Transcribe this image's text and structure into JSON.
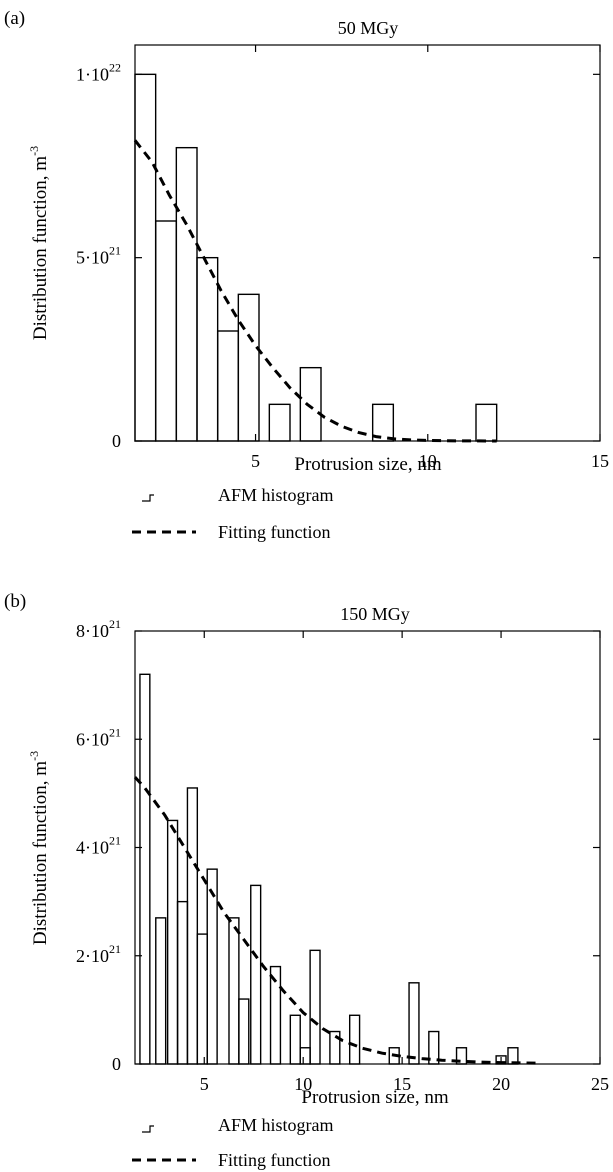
{
  "chart_data": [
    {
      "panel_label": "(a)",
      "type": "bar",
      "title": "50 MGy",
      "xlabel": "Protrusion size, nm",
      "ylabel": "Distribution function, m",
      "ylabel_sup": "-3",
      "xlim": [
        1.5,
        15
      ],
      "ylim": [
        0,
        1.08e+22
      ],
      "xticks": [
        5,
        10,
        15
      ],
      "xtick_labels": [
        "5",
        "10",
        "15"
      ],
      "yticks": [
        0,
        5e+21,
        1e+22
      ],
      "ytick_labels": [
        {
          "base": "0",
          "sup": ""
        },
        {
          "base": "5·10",
          "sup": "21"
        },
        {
          "base": "1·10",
          "sup": "22"
        }
      ],
      "bar_width": 0.6,
      "bars": [
        {
          "x": 1.8,
          "value": 1e+22
        },
        {
          "x": 2.4,
          "value": 6e+21
        },
        {
          "x": 3.0,
          "value": 8e+21
        },
        {
          "x": 3.6,
          "value": 5e+21
        },
        {
          "x": 4.2,
          "value": 3e+21
        },
        {
          "x": 4.8,
          "value": 4e+21
        },
        {
          "x": 5.7,
          "value": 1e+21
        },
        {
          "x": 6.6,
          "value": 2e+21
        },
        {
          "x": 8.7,
          "value": 1e+21
        },
        {
          "x": 11.7,
          "value": 1e+21
        }
      ],
      "series": [
        {
          "name": "AFM histogram",
          "style": "solid-steps"
        },
        {
          "name": "Fitting function",
          "style": "dashed",
          "x": [
            1.5,
            2,
            2.5,
            3,
            3.5,
            4,
            4.5,
            5,
            5.5,
            6,
            6.5,
            7,
            7.5,
            8,
            8.5,
            9,
            9.5,
            10,
            10.5,
            11,
            11.5,
            12
          ],
          "values": [
            8.2e+21,
            7.6e+21,
            6.7e+21,
            5.9e+21,
            5e+21,
            4.1e+21,
            3.3e+21,
            2.6e+21,
            2e+21,
            1.45e+21,
            1e+21,
            6.5e+20,
            4e+20,
            2.3e+20,
            1.2e+20,
            6e+19,
            3e+19,
            1.5e+19,
            8e+18,
            4e+18,
            2e+18,
            1e+18
          ]
        }
      ],
      "legend": {
        "placement": "below",
        "entries": [
          "AFM histogram",
          "Fitting function"
        ]
      }
    },
    {
      "panel_label": "(b)",
      "type": "bar",
      "title": "150 MGy",
      "xlabel": "Protrusion size, nm",
      "ylabel": "Distribution function, m",
      "ylabel_sup": "-3",
      "xlim": [
        1.5,
        25
      ],
      "ylim": [
        0,
        8e+21
      ],
      "xticks": [
        5,
        10,
        15,
        20,
        25
      ],
      "xtick_labels": [
        "5",
        "10",
        "15",
        "20",
        "25"
      ],
      "yticks": [
        0,
        2e+21,
        4e+21,
        6e+21,
        8e+21
      ],
      "ytick_labels": [
        {
          "base": "0",
          "sup": ""
        },
        {
          "base": "2·10",
          "sup": "21"
        },
        {
          "base": "4·10",
          "sup": "21"
        },
        {
          "base": "6·10",
          "sup": "21"
        },
        {
          "base": "8·10",
          "sup": "21"
        }
      ],
      "bar_width": 0.5,
      "bars": [
        {
          "x": 2.0,
          "value": 7.2e+21
        },
        {
          "x": 2.8,
          "value": 2.7e+21
        },
        {
          "x": 3.4,
          "value": 4.5e+21
        },
        {
          "x": 3.9,
          "value": 3e+21
        },
        {
          "x": 4.4,
          "value": 5.1e+21
        },
        {
          "x": 4.9,
          "value": 2.4e+21
        },
        {
          "x": 5.4,
          "value": 3.6e+21
        },
        {
          "x": 6.0,
          "value": 0.0
        },
        {
          "x": 6.5,
          "value": 2.7e+21
        },
        {
          "x": 7.0,
          "value": 1.2e+21
        },
        {
          "x": 7.6,
          "value": 3.3e+21
        },
        {
          "x": 8.1,
          "value": 0.0
        },
        {
          "x": 8.6,
          "value": 1.8e+21
        },
        {
          "x": 9.1,
          "value": 0.0
        },
        {
          "x": 9.6,
          "value": 9e+20
        },
        {
          "x": 10.1,
          "value": 3e+20
        },
        {
          "x": 10.6,
          "value": 2.1e+21
        },
        {
          "x": 11.1,
          "value": 0.0
        },
        {
          "x": 11.6,
          "value": 6e+20
        },
        {
          "x": 12.1,
          "value": 0.0
        },
        {
          "x": 12.6,
          "value": 9e+20
        },
        {
          "x": 13.1,
          "value": 0.0
        },
        {
          "x": 14.6,
          "value": 3e+20
        },
        {
          "x": 15.6,
          "value": 1.5e+21
        },
        {
          "x": 16.6,
          "value": 6e+20
        },
        {
          "x": 18.0,
          "value": 3e+20
        },
        {
          "x": 20.0,
          "value": 1.5e+20
        },
        {
          "x": 20.6,
          "value": 3e+20
        }
      ],
      "series": [
        {
          "name": "AFM histogram",
          "style": "solid-steps"
        },
        {
          "name": "Fitting function",
          "style": "dashed",
          "x": [
            1.5,
            2,
            3,
            4,
            5,
            6,
            7,
            8,
            9,
            10,
            11,
            12,
            13,
            14,
            15,
            16,
            17,
            18,
            19,
            20,
            21,
            22
          ],
          "values": [
            5.3e+21,
            5.1e+21,
            4.6e+21,
            4e+21,
            3.4e+21,
            2.8e+21,
            2.3e+21,
            1.8e+21,
            1.35e+21,
            9.5e+20,
            6.5e+20,
            4.3e+20,
            2.9e+20,
            2e+20,
            1.4e+20,
            1e+20,
            7e+19,
            5e+19,
            3.5e+19,
            2.5e+19,
            2e+19,
            1.5e+19
          ]
        }
      ],
      "legend": {
        "placement": "below",
        "entries": [
          "AFM histogram",
          "Fitting function"
        ]
      }
    }
  ]
}
